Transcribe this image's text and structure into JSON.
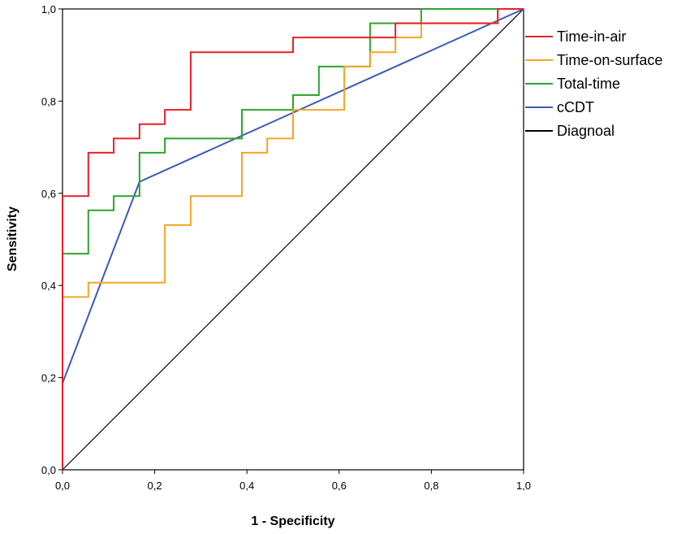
{
  "chart_data": {
    "type": "line",
    "title": "",
    "xlabel": "1 - Specificity",
    "ylabel": "Sensitivity",
    "xlim": [
      0,
      1
    ],
    "ylim": [
      0,
      1
    ],
    "xticks": [
      "0,0",
      "0,2",
      "0,4",
      "0,6",
      "0,8",
      "1,0"
    ],
    "yticks": [
      "0,0",
      "0,2",
      "0,4",
      "0,6",
      "0,8",
      "1,0"
    ],
    "legend_position": "right",
    "grid": false,
    "series": [
      {
        "name": "Time-in-air",
        "color": "#e8202a",
        "points": [
          [
            0,
            0
          ],
          [
            0,
            0.594
          ],
          [
            0.056,
            0.594
          ],
          [
            0.056,
            0.688
          ],
          [
            0.111,
            0.688
          ],
          [
            0.111,
            0.719
          ],
          [
            0.167,
            0.719
          ],
          [
            0.167,
            0.75
          ],
          [
            0.222,
            0.75
          ],
          [
            0.222,
            0.781
          ],
          [
            0.278,
            0.781
          ],
          [
            0.278,
            0.906
          ],
          [
            0.5,
            0.906
          ],
          [
            0.5,
            0.938
          ],
          [
            0.722,
            0.938
          ],
          [
            0.722,
            0.969
          ],
          [
            0.944,
            0.969
          ],
          [
            0.944,
            1.0
          ],
          [
            1.0,
            1.0
          ]
        ]
      },
      {
        "name": "Time-on-surface",
        "color": "#f5a623",
        "points": [
          [
            0,
            0
          ],
          [
            0,
            0.375
          ],
          [
            0.056,
            0.375
          ],
          [
            0.056,
            0.406
          ],
          [
            0.222,
            0.406
          ],
          [
            0.222,
            0.531
          ],
          [
            0.278,
            0.531
          ],
          [
            0.278,
            0.594
          ],
          [
            0.389,
            0.594
          ],
          [
            0.389,
            0.688
          ],
          [
            0.444,
            0.688
          ],
          [
            0.444,
            0.719
          ],
          [
            0.5,
            0.719
          ],
          [
            0.5,
            0.781
          ],
          [
            0.611,
            0.781
          ],
          [
            0.611,
            0.875
          ],
          [
            0.667,
            0.875
          ],
          [
            0.667,
            0.906
          ],
          [
            0.722,
            0.906
          ],
          [
            0.722,
            0.938
          ],
          [
            0.778,
            0.938
          ],
          [
            0.778,
            0.969
          ],
          [
            0.944,
            0.969
          ],
          [
            0.944,
            1.0
          ],
          [
            1.0,
            1.0
          ]
        ]
      },
      {
        "name": "Total-time",
        "color": "#2ca52c",
        "points": [
          [
            0,
            0
          ],
          [
            0,
            0.469
          ],
          [
            0.056,
            0.469
          ],
          [
            0.056,
            0.563
          ],
          [
            0.111,
            0.563
          ],
          [
            0.111,
            0.594
          ],
          [
            0.167,
            0.594
          ],
          [
            0.167,
            0.688
          ],
          [
            0.222,
            0.688
          ],
          [
            0.222,
            0.719
          ],
          [
            0.389,
            0.719
          ],
          [
            0.389,
            0.781
          ],
          [
            0.5,
            0.781
          ],
          [
            0.5,
            0.813
          ],
          [
            0.556,
            0.813
          ],
          [
            0.556,
            0.875
          ],
          [
            0.667,
            0.875
          ],
          [
            0.667,
            0.969
          ],
          [
            0.778,
            0.969
          ],
          [
            0.778,
            1.0
          ],
          [
            1.0,
            1.0
          ]
        ]
      },
      {
        "name": "cCDT",
        "color": "#3a5ab8",
        "points": [
          [
            0,
            0
          ],
          [
            0,
            0.188
          ],
          [
            0.167,
            0.625
          ],
          [
            1.0,
            1.0
          ]
        ]
      },
      {
        "name": "Diagnoal",
        "color": "#000000",
        "points": [
          [
            0,
            0
          ],
          [
            1.0,
            1.0
          ]
        ]
      }
    ]
  }
}
